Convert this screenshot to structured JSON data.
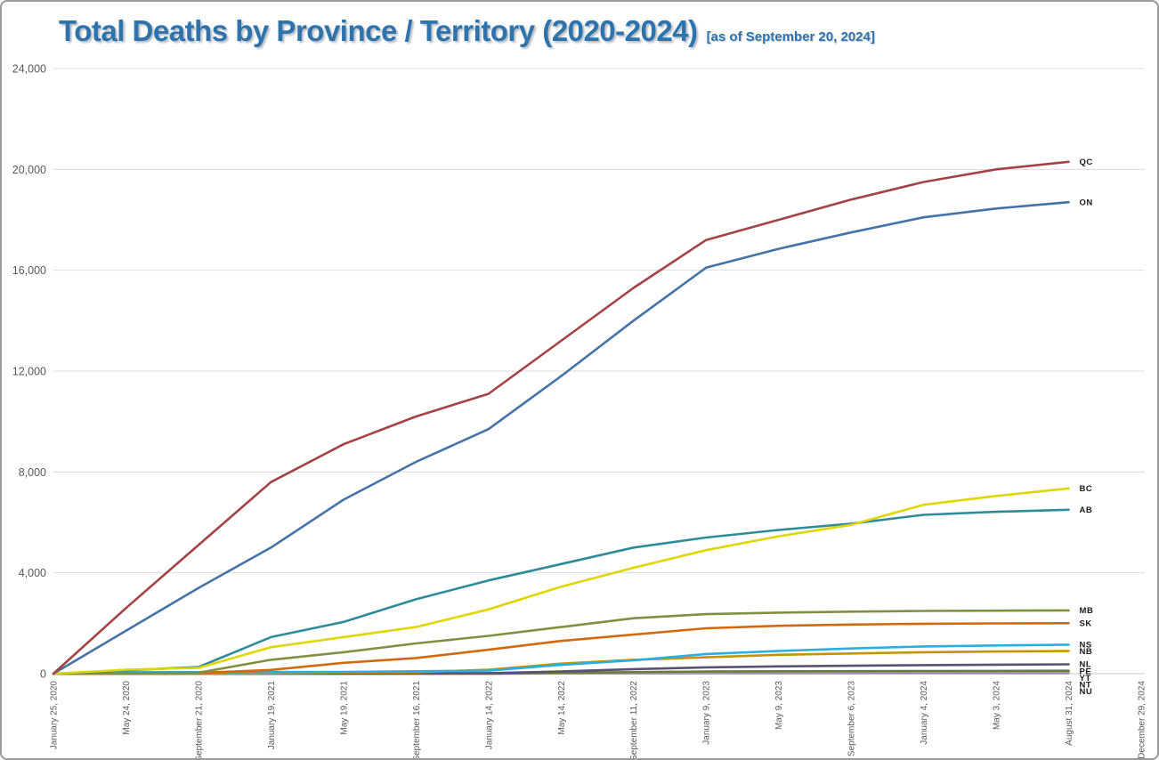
{
  "window": {
    "background": "#ffffff",
    "border_color": "#9b9b9b"
  },
  "header": {
    "title": "Total Deaths by Province / Territory (2020-2024)",
    "subtitle": "[as of September 20, 2024]",
    "title_color": "#2E73AC"
  },
  "chart_data": {
    "type": "line",
    "title": "Total Deaths by Province / Territory (2020-2024)",
    "subtitle_annotation": "[as of September 20, 2024]",
    "x_axis": {
      "labels": [
        "January 25, 2020",
        "May 24, 2020",
        "September 21, 2020",
        "January 19, 2021",
        "May 19, 2021",
        "September 16, 2021",
        "January 14, 2022",
        "May 14, 2022",
        "September 11, 2022",
        "January 9, 2023",
        "May 9, 2023",
        "September 6, 2023",
        "January 4, 2024",
        "May 3, 2024",
        "August 31, 2024",
        "December 29, 2024"
      ],
      "label_rotation_deg": -90,
      "tick_text_color": "#595959"
    },
    "y_axis": {
      "min": 0,
      "max": 24000,
      "tick_interval": 4000,
      "tick_labels": [
        "0",
        "4,000",
        "8,000",
        "12,000",
        "16,000",
        "20,000",
        "24,000"
      ],
      "tick_text_color": "#595959"
    },
    "grid": {
      "horizontal": true,
      "vertical": false,
      "color": "#DCDCDC",
      "axis_color": "#C8C8C8"
    },
    "legend_position": "labels-at-line-ends",
    "data_ends_at_label_index": 14,
    "series": [
      {
        "name": "QC",
        "color": "#A34345",
        "values": [
          0,
          2600,
          5100,
          7600,
          9100,
          10200,
          11100,
          13200,
          15300,
          17200,
          18000,
          18800,
          19500,
          20000,
          20300
        ]
      },
      {
        "name": "ON",
        "color": "#4573A7",
        "values": [
          0,
          1700,
          3400,
          5000,
          6900,
          8400,
          9700,
          11800,
          14000,
          16100,
          16850,
          17500,
          18100,
          18450,
          18700
        ]
      },
      {
        "name": "BC",
        "color": "#DFD600",
        "values": [
          0,
          160,
          230,
          1050,
          1450,
          1850,
          2550,
          3450,
          4200,
          4900,
          5450,
          5900,
          6700,
          7050,
          7350
        ]
      },
      {
        "name": "AB",
        "color": "#2E8B9A",
        "values": [
          0,
          135,
          260,
          1450,
          2050,
          2950,
          3700,
          4350,
          5000,
          5400,
          5700,
          5950,
          6300,
          6420,
          6500
        ]
      },
      {
        "name": "MB",
        "color": "#7E9141",
        "values": [
          0,
          30,
          40,
          550,
          850,
          1200,
          1500,
          1850,
          2200,
          2360,
          2420,
          2460,
          2490,
          2500,
          2510
        ]
      },
      {
        "name": "SK",
        "color": "#D2690E",
        "values": [
          0,
          10,
          25,
          150,
          430,
          620,
          950,
          1300,
          1550,
          1800,
          1900,
          1950,
          1980,
          1995,
          2000
        ]
      },
      {
        "name": "NS",
        "color": "#27AFE5",
        "values": [
          0,
          55,
          65,
          65,
          70,
          95,
          120,
          350,
          530,
          780,
          900,
          1000,
          1080,
          1120,
          1150
        ]
      },
      {
        "name": "NB",
        "color": "#C29500",
        "values": [
          0,
          0,
          2,
          13,
          45,
          55,
          160,
          400,
          550,
          650,
          750,
          800,
          850,
          880,
          900
        ]
      },
      {
        "name": "NL",
        "color": "#585270",
        "values": [
          0,
          3,
          3,
          4,
          6,
          10,
          20,
          90,
          180,
          250,
          290,
          315,
          340,
          355,
          370
        ]
      },
      {
        "name": "PE",
        "color": "#6B7B3A",
        "values": [
          0,
          0,
          0,
          0,
          0,
          0,
          0,
          35,
          60,
          85,
          95,
          100,
          105,
          110,
          115
        ]
      },
      {
        "name": "YT",
        "color": "#A79BC8",
        "values": [
          0,
          0,
          0,
          2,
          2,
          8,
          15,
          25,
          30,
          60,
          70,
          75,
          80,
          85,
          90
        ]
      },
      {
        "name": "NT",
        "color": "#9C8AA5",
        "values": [
          0,
          0,
          0,
          0,
          0,
          0,
          2,
          10,
          15,
          20,
          22,
          23,
          24,
          25,
          25
        ]
      },
      {
        "name": "NU",
        "color": "#C9A0C9",
        "values": [
          0,
          0,
          0,
          1,
          4,
          4,
          5,
          10,
          15,
          19,
          19,
          20,
          20,
          20,
          20
        ]
      }
    ]
  }
}
